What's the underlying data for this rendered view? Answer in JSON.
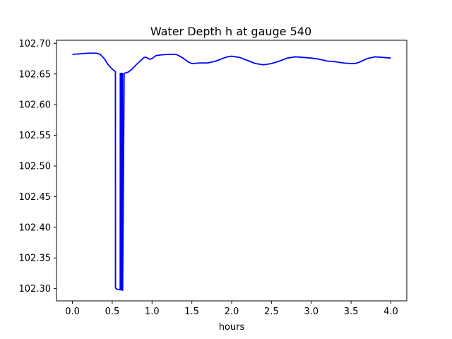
{
  "chart_data": {
    "type": "line",
    "title": "Water Depth h at gauge 540",
    "xlabel": "hours",
    "ylabel": "",
    "xlim": [
      -0.2,
      4.2
    ],
    "ylim": [
      102.28,
      102.705
    ],
    "grid": false,
    "legend": "none",
    "x_ticks": [
      "0.0",
      "0.5",
      "1.0",
      "1.5",
      "2.0",
      "2.5",
      "3.0",
      "3.5",
      "4.0"
    ],
    "x_tick_values": [
      0.0,
      0.5,
      1.0,
      1.5,
      2.0,
      2.5,
      3.0,
      3.5,
      4.0
    ],
    "y_ticks": [
      "102.30",
      "102.35",
      "102.40",
      "102.45",
      "102.50",
      "102.55",
      "102.60",
      "102.65",
      "102.70"
    ],
    "y_tick_values": [
      102.3,
      102.35,
      102.4,
      102.45,
      102.5,
      102.55,
      102.6,
      102.65,
      102.7
    ],
    "series": [
      {
        "color": "#0000ff",
        "x": [
          0.0,
          0.1,
          0.2,
          0.3,
          0.35,
          0.4,
          0.45,
          0.5,
          0.54,
          0.541,
          0.56,
          0.6,
          0.601,
          0.61,
          0.611,
          0.62,
          0.621,
          0.63,
          0.631,
          0.65,
          0.7,
          0.75,
          0.8,
          0.85,
          0.9,
          0.93,
          0.97,
          1.0,
          1.05,
          1.1,
          1.2,
          1.3,
          1.35,
          1.4,
          1.45,
          1.5,
          1.6,
          1.7,
          1.8,
          1.9,
          1.95,
          2.0,
          2.1,
          2.2,
          2.3,
          2.4,
          2.5,
          2.6,
          2.7,
          2.8,
          2.9,
          3.0,
          3.1,
          3.2,
          3.3,
          3.4,
          3.5,
          3.55,
          3.6,
          3.7,
          3.8,
          3.9,
          4.0
        ],
        "y": [
          102.682,
          102.683,
          102.684,
          102.684,
          102.682,
          102.675,
          102.665,
          102.658,
          102.654,
          102.301,
          102.299,
          102.298,
          102.651,
          102.651,
          102.298,
          102.298,
          102.651,
          102.651,
          102.297,
          102.651,
          102.653,
          102.658,
          102.665,
          102.671,
          102.677,
          102.677,
          102.674,
          102.675,
          102.68,
          102.681,
          102.682,
          102.682,
          102.679,
          102.675,
          102.67,
          102.667,
          102.668,
          102.668,
          102.671,
          102.676,
          102.678,
          102.679,
          102.677,
          102.672,
          102.667,
          102.665,
          102.667,
          102.671,
          102.676,
          102.678,
          102.677,
          102.676,
          102.674,
          102.671,
          102.67,
          102.668,
          102.667,
          102.667,
          102.669,
          102.675,
          102.678,
          102.677,
          102.676
        ]
      }
    ]
  }
}
